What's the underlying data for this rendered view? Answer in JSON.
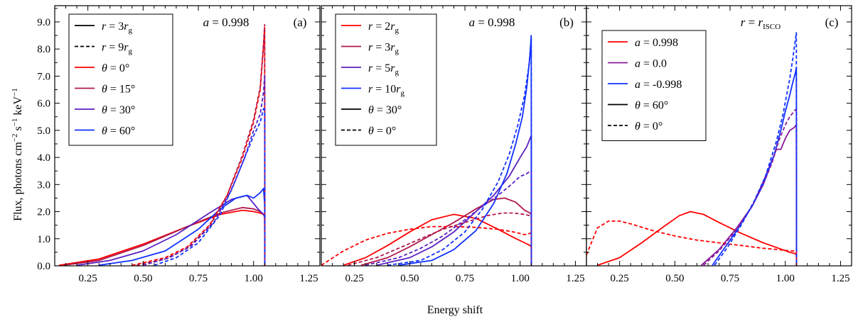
{
  "chart_data": {
    "type": "line",
    "ylabel_parts": {
      "a": "Flux, photons cm",
      "b": "−2",
      "c": " s",
      "d": "−1",
      "e": " keV",
      "f": "−1"
    },
    "xlabel": "Energy shift",
    "xlim": [
      0.1,
      1.3
    ],
    "ylim": [
      0.0,
      9.6
    ],
    "xticks": [
      "0.25",
      "0.50",
      "0.75",
      "1.00",
      "1.25"
    ],
    "xtick_values": [
      0.25,
      0.5,
      0.75,
      1.0,
      1.25
    ],
    "yticks": [
      "0.0",
      "1.0",
      "2.0",
      "3.0",
      "4.0",
      "5.0",
      "6.0",
      "7.0",
      "8.0",
      "9.0"
    ],
    "ytick_values": [
      0,
      1,
      2,
      3,
      4,
      5,
      6,
      7,
      8,
      9
    ],
    "colors": {
      "red": "#ff0000",
      "crimson": "#b0184a",
      "purple": "#8a1a9b",
      "indigo": "#5a1fc0",
      "blue": "#1030ff",
      "black": "#000000"
    },
    "panels": [
      {
        "label": "(a)",
        "annotation": {
          "lhs": "a",
          "rhs": "0.998"
        },
        "legend": [
          {
            "var": "r",
            "val": "3",
            "unit": "r",
            "unit_sub": "g",
            "style": "solid",
            "color": "black"
          },
          {
            "var": "r",
            "val": "9",
            "unit": "r",
            "unit_sub": "g",
            "style": "dashed",
            "color": "black"
          },
          {
            "var": "θ",
            "val": "0°",
            "style": "solid",
            "color": "red"
          },
          {
            "var": "θ",
            "val": "15°",
            "style": "solid",
            "color": "crimson"
          },
          {
            "var": "θ",
            "val": "30°",
            "style": "solid",
            "color": "indigo"
          },
          {
            "var": "θ",
            "val": "60°",
            "style": "solid",
            "color": "blue"
          }
        ],
        "series": [
          {
            "name": "r=3rg θ=0°",
            "color": "red",
            "style": "solid",
            "x": [
              0.12,
              0.3,
              0.5,
              0.7,
              0.85,
              0.95,
              1.0,
              1.03,
              1.045,
              1.05,
              1.051
            ],
            "y": [
              0.02,
              0.25,
              0.8,
              1.45,
              1.9,
              2.05,
              2.0,
              1.95,
              1.9,
              1.8,
              0.0
            ]
          },
          {
            "name": "r=3rg θ=15°",
            "color": "crimson",
            "style": "solid",
            "x": [
              0.14,
              0.3,
              0.5,
              0.7,
              0.85,
              0.95,
              1.0,
              1.03,
              1.045,
              1.05,
              1.051
            ],
            "y": [
              0.02,
              0.2,
              0.75,
              1.45,
              1.95,
              2.15,
              2.1,
              2.0,
              1.9,
              1.8,
              0.0
            ]
          },
          {
            "name": "r=3rg θ=30°",
            "color": "indigo",
            "style": "solid",
            "x": [
              0.2,
              0.35,
              0.5,
              0.65,
              0.8,
              0.9,
              0.97,
              1.02,
              1.045,
              1.05,
              1.051
            ],
            "y": [
              0.02,
              0.2,
              0.55,
              1.15,
              1.95,
              2.45,
              2.6,
              2.1,
              1.9,
              1.85,
              0.0
            ]
          },
          {
            "name": "r=3rg θ=60°",
            "color": "blue",
            "style": "solid",
            "x": [
              0.3,
              0.45,
              0.6,
              0.75,
              0.85,
              0.92,
              0.97,
              1.0,
              1.03,
              1.045,
              1.05,
              1.051
            ],
            "y": [
              0.02,
              0.2,
              0.55,
              1.35,
              2.1,
              2.5,
              2.6,
              2.5,
              2.7,
              2.85,
              2.3,
              0.0
            ]
          },
          {
            "name": "r=9rg θ=0°",
            "color": "red",
            "style": "dashed",
            "x": [
              0.45,
              0.6,
              0.7,
              0.8,
              0.88,
              0.95,
              1.0,
              1.03,
              1.045,
              1.05,
              1.051
            ],
            "y": [
              0.02,
              0.3,
              0.7,
              1.5,
              2.6,
              4.0,
              5.3,
              6.5,
              8.1,
              8.8,
              0.0
            ]
          },
          {
            "name": "r=9rg θ=15°",
            "color": "crimson",
            "style": "dashed",
            "x": [
              0.47,
              0.6,
              0.7,
              0.8,
              0.88,
              0.95,
              1.0,
              1.03,
              1.045,
              1.05,
              1.051
            ],
            "y": [
              0.02,
              0.25,
              0.65,
              1.45,
              2.6,
              4.1,
              5.4,
              6.6,
              8.2,
              8.9,
              0.0
            ]
          },
          {
            "name": "r=9rg θ=30°",
            "color": "indigo",
            "style": "dashed",
            "x": [
              0.5,
              0.62,
              0.72,
              0.82,
              0.9,
              0.96,
              1.0,
              1.03,
              1.045,
              1.05,
              1.051
            ],
            "y": [
              0.02,
              0.3,
              0.75,
              1.6,
              2.8,
              4.0,
              5.0,
              5.6,
              6.4,
              7.0,
              0.0
            ]
          },
          {
            "name": "r=9rg θ=60°",
            "color": "blue",
            "style": "dashed",
            "x": [
              0.55,
              0.65,
              0.75,
              0.85,
              0.92,
              0.97,
              1.0,
              1.03,
              1.045,
              1.05,
              1.051
            ],
            "y": [
              0.02,
              0.3,
              0.85,
              1.9,
              3.2,
              4.2,
              4.8,
              5.3,
              5.8,
              5.7,
              0.0
            ]
          }
        ]
      },
      {
        "label": "(b)",
        "annotation": {
          "lhs": "a",
          "rhs": "0.998"
        },
        "legend": [
          {
            "var": "r",
            "val": "2",
            "unit": "r",
            "unit_sub": "g",
            "style": "solid",
            "color": "red"
          },
          {
            "var": "r",
            "val": "3",
            "unit": "r",
            "unit_sub": "g",
            "style": "solid",
            "color": "crimson"
          },
          {
            "var": "r",
            "val": "5",
            "unit": "r",
            "unit_sub": "g",
            "style": "solid",
            "color": "indigo"
          },
          {
            "var": "r",
            "val": "10",
            "unit": "r",
            "unit_sub": "g",
            "style": "solid",
            "color": "blue"
          },
          {
            "var": "θ",
            "val": "30°",
            "style": "solid",
            "color": "black"
          },
          {
            "var": "θ",
            "val": "0°",
            "style": "dashed",
            "color": "black"
          }
        ],
        "series": [
          {
            "name": "r=2rg θ=30°",
            "color": "red",
            "style": "solid",
            "x": [
              0.2,
              0.3,
              0.4,
              0.5,
              0.6,
              0.7,
              0.8,
              0.9,
              0.97,
              1.02,
              1.045,
              1.05,
              1.051
            ],
            "y": [
              0.02,
              0.3,
              0.75,
              1.25,
              1.7,
              1.9,
              1.75,
              1.35,
              1.05,
              0.85,
              0.75,
              0.7,
              0.0
            ]
          },
          {
            "name": "r=3rg θ=30°",
            "color": "crimson",
            "style": "solid",
            "x": [
              0.28,
              0.4,
              0.5,
              0.6,
              0.7,
              0.8,
              0.88,
              0.93,
              0.98,
              1.02,
              1.045,
              1.05,
              1.051
            ],
            "y": [
              0.02,
              0.3,
              0.7,
              1.15,
              1.6,
              2.1,
              2.45,
              2.5,
              2.35,
              2.05,
              1.95,
              1.9,
              0.0
            ]
          },
          {
            "name": "r=5rg θ=30°",
            "color": "indigo",
            "style": "solid",
            "x": [
              0.35,
              0.5,
              0.6,
              0.7,
              0.8,
              0.88,
              0.95,
              1.0,
              1.03,
              1.045,
              1.05,
              1.051
            ],
            "y": [
              0.02,
              0.3,
              0.7,
              1.25,
              2.0,
              2.6,
              3.3,
              4.0,
              4.4,
              4.7,
              4.8,
              0.0
            ]
          },
          {
            "name": "r=10rg θ=30°",
            "color": "blue",
            "style": "solid",
            "x": [
              0.45,
              0.6,
              0.7,
              0.8,
              0.88,
              0.94,
              0.98,
              1.01,
              1.03,
              1.045,
              1.05,
              1.051
            ],
            "y": [
              0.02,
              0.2,
              0.6,
              1.3,
              2.3,
              3.4,
              4.5,
              5.5,
              6.6,
              7.8,
              8.5,
              0.0
            ]
          },
          {
            "name": "r=2rg θ=0°",
            "color": "red",
            "style": "dashed",
            "x": [
              0.1,
              0.2,
              0.3,
              0.4,
              0.5,
              0.6,
              0.7,
              0.8,
              0.9,
              0.97,
              1.02,
              1.045,
              1.05,
              1.051
            ],
            "y": [
              0.02,
              0.55,
              0.95,
              1.2,
              1.35,
              1.45,
              1.45,
              1.42,
              1.35,
              1.25,
              1.15,
              1.2,
              1.2,
              0.0
            ]
          },
          {
            "name": "r=3rg θ=0°",
            "color": "crimson",
            "style": "dashed",
            "x": [
              0.22,
              0.35,
              0.45,
              0.55,
              0.65,
              0.75,
              0.85,
              0.92,
              0.97,
              1.02,
              1.045,
              1.05,
              1.051
            ],
            "y": [
              0.02,
              0.3,
              0.65,
              1.0,
              1.35,
              1.6,
              1.85,
              1.95,
              1.95,
              1.9,
              1.85,
              1.8,
              0.0
            ]
          },
          {
            "name": "r=5rg θ=0°",
            "color": "indigo",
            "style": "dashed",
            "x": [
              0.3,
              0.45,
              0.55,
              0.65,
              0.75,
              0.83,
              0.9,
              0.96,
              1.0,
              1.03,
              1.045,
              1.05,
              1.051
            ],
            "y": [
              0.02,
              0.3,
              0.65,
              1.1,
              1.7,
              2.2,
              2.6,
              3.0,
              3.3,
              3.4,
              3.5,
              3.5,
              0.0
            ]
          },
          {
            "name": "r=10rg θ=0°",
            "color": "blue",
            "style": "dashed",
            "x": [
              0.4,
              0.55,
              0.65,
              0.75,
              0.83,
              0.9,
              0.95,
              0.99,
              1.02,
              1.04,
              1.05,
              1.051
            ],
            "y": [
              0.02,
              0.2,
              0.6,
              1.25,
              2.1,
              3.1,
              4.1,
              5.2,
              6.3,
              7.4,
              8.4,
              0.0
            ]
          }
        ]
      },
      {
        "label": "(c)",
        "annotation": {
          "lhs": "r",
          "rhs": "r",
          "rhs_sub": "ISCO"
        },
        "legend": [
          {
            "var": "a",
            "val": "0.998",
            "style": "solid",
            "color": "red"
          },
          {
            "var": "a",
            "val": "0.0",
            "style": "solid",
            "color": "purple"
          },
          {
            "var": "a",
            "val": "-0.998",
            "style": "solid",
            "color": "blue"
          },
          {
            "var": "θ",
            "val": "60°",
            "style": "solid",
            "color": "black"
          },
          {
            "var": "θ",
            "val": "0°",
            "style": "dashed",
            "color": "black"
          }
        ],
        "series": [
          {
            "name": "a=0.998 θ=60°",
            "color": "red",
            "style": "solid",
            "x": [
              0.15,
              0.25,
              0.35,
              0.45,
              0.52,
              0.57,
              0.63,
              0.7,
              0.8,
              0.9,
              0.97,
              1.02,
              1.045,
              1.05,
              1.051
            ],
            "y": [
              0.02,
              0.3,
              0.85,
              1.45,
              1.85,
              2.0,
              1.9,
              1.6,
              1.2,
              0.85,
              0.65,
              0.5,
              0.45,
              0.4,
              0.0
            ]
          },
          {
            "name": "a=0.0 θ=60°",
            "color": "purple",
            "style": "solid",
            "x": [
              0.62,
              0.7,
              0.78,
              0.85,
              0.9,
              0.94,
              0.96,
              0.98,
              1.0,
              1.02,
              1.04,
              1.05,
              1.051
            ],
            "y": [
              0.02,
              0.6,
              1.4,
              2.2,
              3.1,
              3.9,
              4.3,
              4.3,
              4.7,
              5.0,
              5.1,
              5.2,
              0.0
            ]
          },
          {
            "name": "a=-0.998 θ=60°",
            "color": "blue",
            "style": "solid",
            "x": [
              0.67,
              0.72,
              0.78,
              0.85,
              0.9,
              0.95,
              0.98,
              1.0,
              1.02,
              1.035,
              1.045,
              1.05,
              1.051
            ],
            "y": [
              0.02,
              0.6,
              1.3,
              2.2,
              3.0,
              4.1,
              5.0,
              5.7,
              6.3,
              6.8,
              7.1,
              7.3,
              0.0
            ]
          },
          {
            "name": "a=0.998 θ=0°",
            "color": "red",
            "style": "dashed",
            "x": [
              0.1,
              0.15,
              0.2,
              0.25,
              0.3,
              0.4,
              0.5,
              0.6,
              0.7,
              0.8,
              0.9,
              0.97,
              1.02,
              1.045,
              1.05,
              1.051
            ],
            "y": [
              0.4,
              1.4,
              1.65,
              1.65,
              1.55,
              1.3,
              1.1,
              0.95,
              0.85,
              0.75,
              0.65,
              0.6,
              0.55,
              0.55,
              0.55,
              0.0
            ]
          },
          {
            "name": "a=0.0 θ=0°",
            "color": "purple",
            "style": "dashed",
            "x": [
              0.63,
              0.7,
              0.78,
              0.85,
              0.9,
              0.94,
              0.97,
              1.0,
              1.02,
              1.04,
              1.05,
              1.051
            ],
            "y": [
              0.02,
              0.55,
              1.35,
              2.2,
              3.0,
              3.8,
              4.6,
              5.2,
              5.5,
              5.7,
              5.8,
              0.0
            ]
          },
          {
            "name": "a=-0.998 θ=0°",
            "color": "blue",
            "style": "dashed",
            "x": [
              0.68,
              0.74,
              0.8,
              0.86,
              0.91,
              0.96,
              0.99,
              1.02,
              1.035,
              1.045,
              1.05,
              1.051
            ],
            "y": [
              0.02,
              0.7,
              1.5,
              2.4,
              3.3,
              4.6,
              5.6,
              6.9,
              7.7,
              8.3,
              8.6,
              0.0
            ]
          }
        ]
      }
    ]
  }
}
